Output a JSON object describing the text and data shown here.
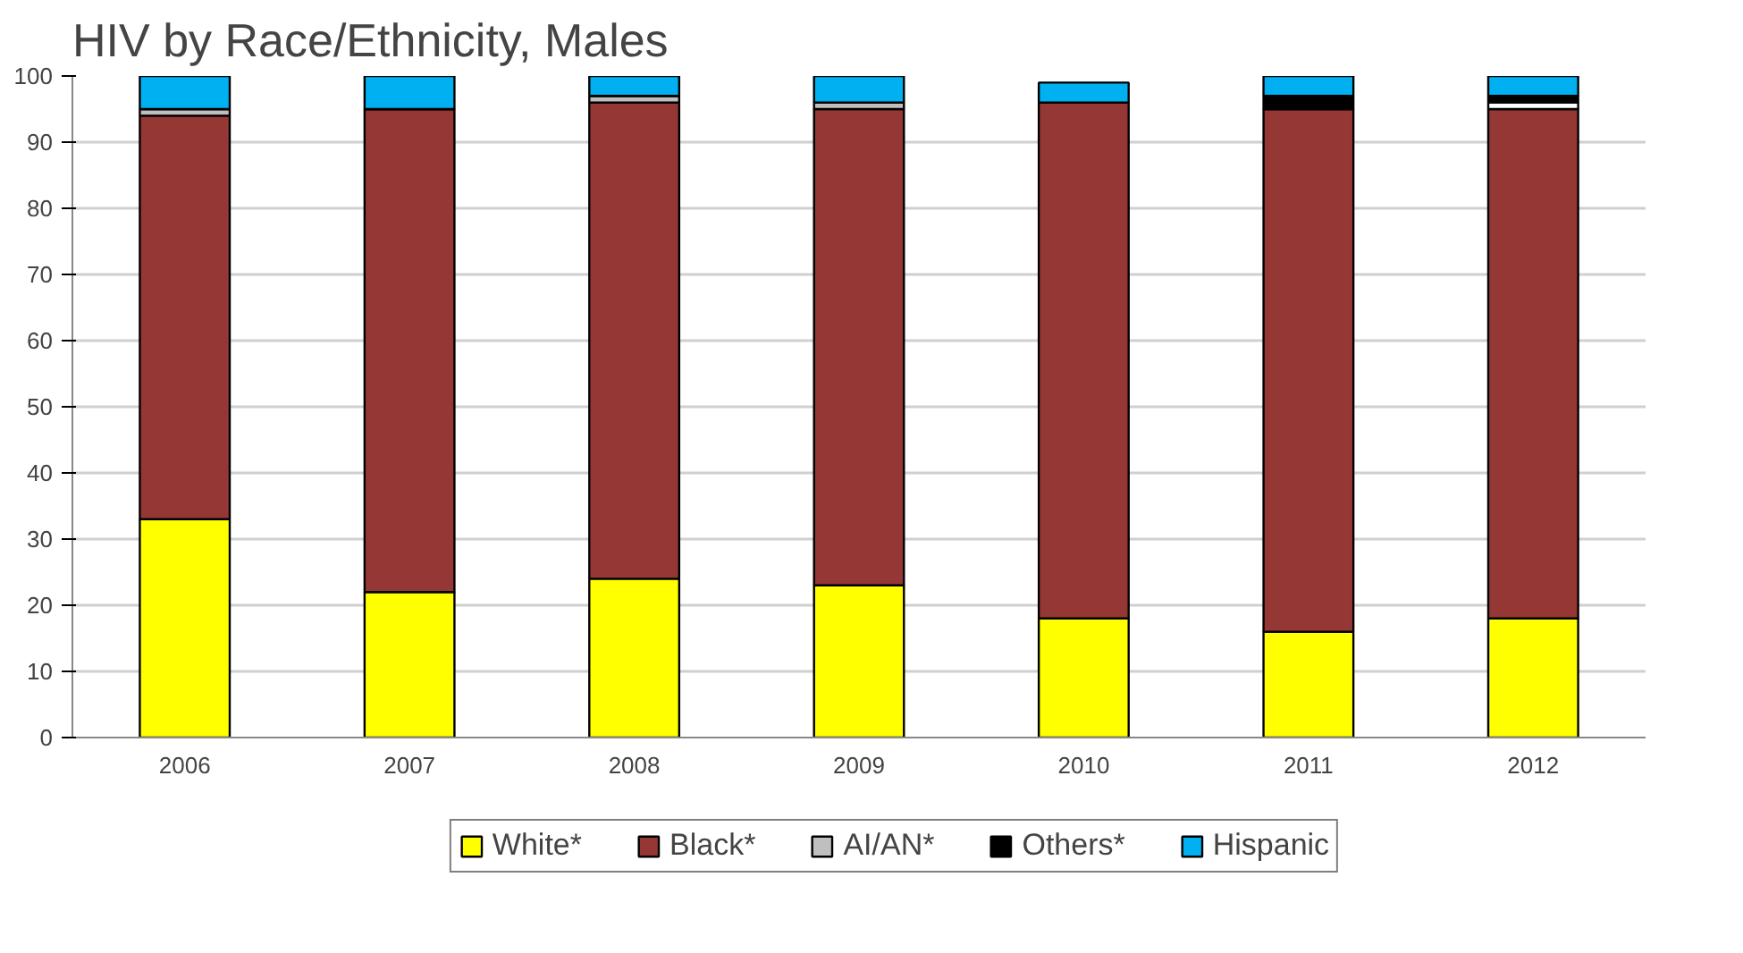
{
  "chart_data": {
    "type": "bar",
    "title": "HIV by Race/Ethnicity, Males",
    "stacked": true,
    "categories": [
      "2006",
      "2007",
      "2008",
      "2009",
      "2010",
      "2011",
      "2012"
    ],
    "series": [
      {
        "name": "White*",
        "color": "#ffff00",
        "values": [
          33,
          22,
          24,
          23,
          18,
          16,
          18
        ]
      },
      {
        "name": "Black*",
        "color": "#953735",
        "values": [
          61,
          73,
          72,
          72,
          78,
          79,
          77
        ]
      },
      {
        "name": "AI/AN*",
        "color": "#bfbfbf",
        "colors": [
          "#bfbfbf",
          "#bfbfbf",
          "#bfbfbf",
          "#bfbfbf",
          "#bfbfbf",
          "#bfbfbf",
          "#ffffff"
        ],
        "values": [
          1,
          0,
          1,
          1,
          0,
          0,
          1
        ]
      },
      {
        "name": "Others*",
        "color": "#000000",
        "values": [
          0,
          0,
          0,
          0,
          0,
          2,
          1
        ]
      },
      {
        "name": "Hispanic",
        "color": "#00b0f0",
        "values": [
          5,
          5,
          3,
          4,
          3,
          3,
          3
        ]
      }
    ],
    "ylim": [
      0,
      100
    ],
    "yticks": [
      0,
      10,
      20,
      30,
      40,
      50,
      60,
      70,
      80,
      90,
      100
    ],
    "grid": "y",
    "legend": "bottom"
  }
}
